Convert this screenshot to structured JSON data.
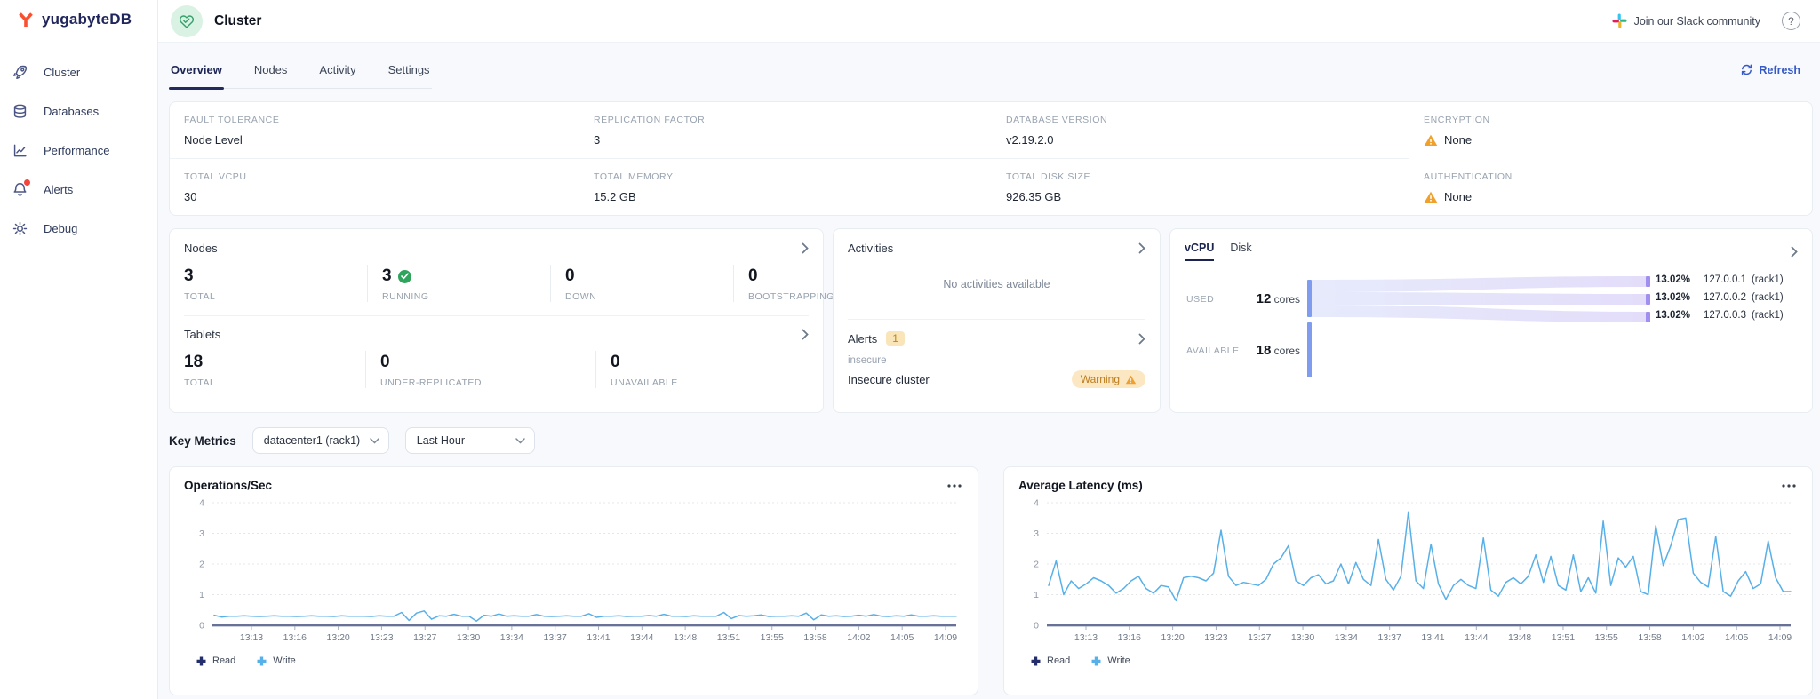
{
  "brand": {
    "name": "yugabyteDB"
  },
  "sidebar": {
    "items": [
      {
        "label": "Cluster",
        "icon": "rocket-icon"
      },
      {
        "label": "Databases",
        "icon": "database-icon"
      },
      {
        "label": "Performance",
        "icon": "performance-icon"
      },
      {
        "label": "Alerts",
        "icon": "bell-icon",
        "has_notification_dot": true
      },
      {
        "label": "Debug",
        "icon": "gear-icon"
      }
    ]
  },
  "header": {
    "title": "Cluster",
    "slack_label": "Join our Slack community",
    "help_label": "?"
  },
  "tabs": {
    "items": [
      "Overview",
      "Nodes",
      "Activity",
      "Settings"
    ],
    "active": "Overview",
    "refresh_label": "Refresh"
  },
  "cluster_info": {
    "fault_tolerance": {
      "label": "FAULT TOLERANCE",
      "value": "Node Level"
    },
    "replication_factor": {
      "label": "REPLICATION FACTOR",
      "value": "3"
    },
    "database_version": {
      "label": "DATABASE VERSION",
      "value": "v2.19.2.0"
    },
    "encryption": {
      "label": "ENCRYPTION",
      "value": "None",
      "warning": true
    },
    "total_vcpu": {
      "label": "TOTAL VCPU",
      "value": "30"
    },
    "total_memory": {
      "label": "TOTAL MEMORY",
      "value": "15.2 GB"
    },
    "total_disk": {
      "label": "TOTAL DISK SIZE",
      "value": "926.35 GB"
    },
    "authentication": {
      "label": "AUTHENTICATION",
      "value": "None",
      "warning": true
    }
  },
  "nodes_panel": {
    "title": "Nodes",
    "stats": [
      {
        "value": "3",
        "label": "TOTAL"
      },
      {
        "value": "3",
        "label": "RUNNING",
        "check": true
      },
      {
        "value": "0",
        "label": "DOWN"
      },
      {
        "value": "0",
        "label": "BOOTSTRAPPING"
      }
    ]
  },
  "tablets_panel": {
    "title": "Tablets",
    "stats": [
      {
        "value": "18",
        "label": "TOTAL"
      },
      {
        "value": "0",
        "label": "UNDER-REPLICATED"
      },
      {
        "value": "0",
        "label": "UNAVAILABLE"
      }
    ]
  },
  "activities_panel": {
    "title": "Activities",
    "empty_text": "No activities available"
  },
  "alerts_panel": {
    "title": "Alerts",
    "count": "1",
    "alert_name": "insecure",
    "alert_desc": "Insecure cluster",
    "severity_badge": "Warning"
  },
  "resources_panel": {
    "tabs": [
      "vCPU",
      "Disk"
    ],
    "active_tab": "vCPU",
    "used": {
      "label": "USED",
      "value": "12",
      "unit": "cores"
    },
    "available": {
      "label": "AVAILABLE",
      "value": "18",
      "unit": "cores"
    },
    "nodes": [
      {
        "percent": "13.02%",
        "name": "127.0.0.1",
        "zone": "(rack1)"
      },
      {
        "percent": "13.02%",
        "name": "127.0.0.2",
        "zone": "(rack1)"
      },
      {
        "percent": "13.02%",
        "name": "127.0.0.3",
        "zone": "(rack1)"
      }
    ]
  },
  "key_metrics": {
    "title": "Key Metrics",
    "region_select": "datacenter1 (rack1)",
    "time_select": "Last Hour"
  },
  "colors": {
    "accent_blue": "#3659c9",
    "success_green": "#2fa45c",
    "warning_amber": "#f0a12c",
    "sankey_left_bar": "#7f9cef",
    "sankey_right_bar": "#a08ff0",
    "sankey_flow": "#e2defa"
  },
  "chart_data": [
    {
      "type": "line",
      "title": "Operations/Sec",
      "x_labels": [
        "13:13",
        "13:16",
        "13:20",
        "13:23",
        "13:27",
        "13:30",
        "13:34",
        "13:37",
        "13:41",
        "13:44",
        "13:48",
        "13:51",
        "13:55",
        "13:58",
        "14:02",
        "14:05",
        "14:09"
      ],
      "ylim": [
        0,
        4
      ],
      "yticks": [
        0,
        1,
        2,
        3,
        4
      ],
      "grid": "dotted-horizontal",
      "legend_position": "bottom",
      "series": [
        {
          "name": "Read",
          "color": "#232e6b",
          "values_constant": 0
        },
        {
          "name": "Write",
          "color": "#58b0e8",
          "values": [
            0.33,
            0.27,
            0.3,
            0.3,
            0.31,
            0.3,
            0.29,
            0.3,
            0.31,
            0.3,
            0.3,
            0.29,
            0.3,
            0.31,
            0.3,
            0.3,
            0.29,
            0.31,
            0.3,
            0.3,
            0.3,
            0.29,
            0.31,
            0.3,
            0.3,
            0.42,
            0.16,
            0.4,
            0.47,
            0.2,
            0.31,
            0.3,
            0.36,
            0.3,
            0.3,
            0.14,
            0.33,
            0.3,
            0.37,
            0.3,
            0.31,
            0.3,
            0.3,
            0.35,
            0.3,
            0.29,
            0.3,
            0.31,
            0.3,
            0.3,
            0.38,
            0.26,
            0.3,
            0.3,
            0.31,
            0.29,
            0.3,
            0.3,
            0.32,
            0.3,
            0.36,
            0.3,
            0.3,
            0.29,
            0.31,
            0.3,
            0.3,
            0.3,
            0.42,
            0.22,
            0.32,
            0.3,
            0.31,
            0.34,
            0.29,
            0.3,
            0.3,
            0.31,
            0.3,
            0.4,
            0.18,
            0.34,
            0.3,
            0.31,
            0.29,
            0.3,
            0.33,
            0.3,
            0.35,
            0.3,
            0.29,
            0.31,
            0.3,
            0.34,
            0.3,
            0.3,
            0.31,
            0.3,
            0.3,
            0.3
          ]
        }
      ]
    },
    {
      "type": "line",
      "title": "Average Latency (ms)",
      "x_labels": [
        "13:13",
        "13:16",
        "13:20",
        "13:23",
        "13:27",
        "13:30",
        "13:34",
        "13:37",
        "13:41",
        "13:44",
        "13:48",
        "13:51",
        "13:55",
        "13:58",
        "14:02",
        "14:05",
        "14:09"
      ],
      "ylim": [
        0,
        4
      ],
      "yticks": [
        0,
        1,
        2,
        3,
        4
      ],
      "grid": "dotted-horizontal",
      "legend_position": "bottom",
      "series": [
        {
          "name": "Read",
          "color": "#232e6b",
          "values_constant": 0
        },
        {
          "name": "Write",
          "color": "#58b0e8",
          "values": [
            1.3,
            2.1,
            1.0,
            1.45,
            1.2,
            1.35,
            1.55,
            1.45,
            1.3,
            1.05,
            1.2,
            1.45,
            1.6,
            1.2,
            1.05,
            1.3,
            1.25,
            0.8,
            1.55,
            1.6,
            1.55,
            1.45,
            1.7,
            3.1,
            1.6,
            1.3,
            1.4,
            1.35,
            1.3,
            1.5,
            2.0,
            2.2,
            2.6,
            1.45,
            1.3,
            1.55,
            1.65,
            1.35,
            1.45,
            2.0,
            1.35,
            2.05,
            1.5,
            1.3,
            2.8,
            1.5,
            1.15,
            1.6,
            3.7,
            1.45,
            1.2,
            2.65,
            1.35,
            0.85,
            1.3,
            1.5,
            1.3,
            1.2,
            2.85,
            1.15,
            0.95,
            1.4,
            1.55,
            1.35,
            1.6,
            2.3,
            1.4,
            2.25,
            1.3,
            1.15,
            2.3,
            1.1,
            1.55,
            1.05,
            3.4,
            1.3,
            2.2,
            1.9,
            2.25,
            1.1,
            1.0,
            3.25,
            1.95,
            2.6,
            3.45,
            3.5,
            1.7,
            1.4,
            1.25,
            2.9,
            1.1,
            0.95,
            1.45,
            1.75,
            1.2,
            1.35,
            2.75,
            1.55,
            1.1,
            1.1
          ]
        }
      ]
    }
  ]
}
